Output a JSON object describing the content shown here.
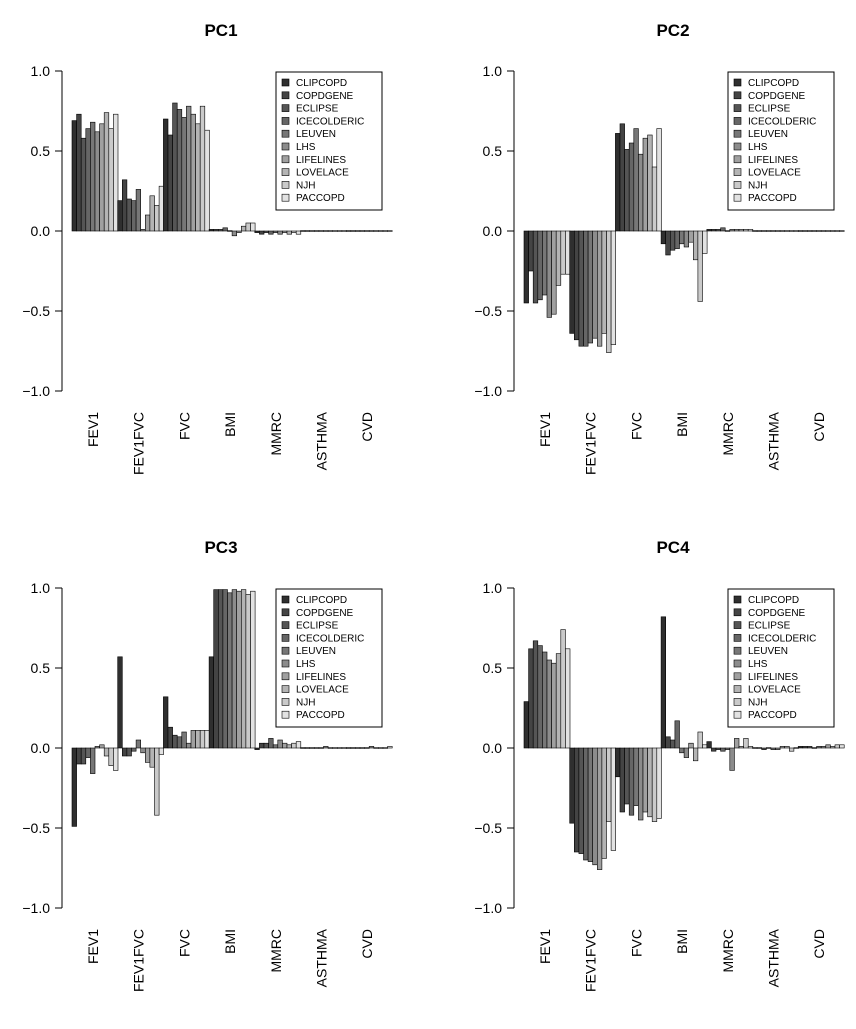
{
  "chart_data": [
    {
      "type": "bar",
      "title": "PC1",
      "categories": [
        "FEV1",
        "FEV1FVC",
        "FVC",
        "BMI",
        "MMRC",
        "ASTHMA",
        "CVD"
      ],
      "legend": [
        "CLIPCOPD",
        "COPDGENE",
        "ECLIPSE",
        "ICECOLDERIC",
        "LEUVEN",
        "LHS",
        "LIFELINES",
        "LOVELACE",
        "NJH",
        "PACCOPD"
      ],
      "colors": [
        "#2f2f2f",
        "#444444",
        "#555555",
        "#666666",
        "#777777",
        "#8c8c8c",
        "#a0a0a0",
        "#b4b4b4",
        "#cacaca",
        "#e2e2e2"
      ],
      "yticks": [
        1.0,
        0.5,
        0.0,
        -0.5,
        -1.0
      ],
      "ytick_labels": [
        "1.0",
        "0.5",
        "0.0",
        "−0.5",
        "−1.0"
      ],
      "ylim": [
        -1.0,
        1.0
      ],
      "legend_position": "top-right",
      "series": [
        {
          "name": "CLIPCOPD",
          "values": [
            0.69,
            0.19,
            0.7,
            0.01,
            -0.01,
            0.0,
            0.0
          ]
        },
        {
          "name": "COPDGENE",
          "values": [
            0.73,
            0.32,
            0.6,
            0.01,
            -0.02,
            0.0,
            0.0
          ]
        },
        {
          "name": "ECLIPSE",
          "values": [
            0.58,
            0.2,
            0.8,
            0.01,
            -0.01,
            0.0,
            0.0
          ]
        },
        {
          "name": "ICECOLDERIC",
          "values": [
            0.64,
            0.19,
            0.76,
            0.02,
            -0.02,
            0.0,
            0.0
          ]
        },
        {
          "name": "LEUVEN",
          "values": [
            0.68,
            0.26,
            0.71,
            0.0,
            -0.01,
            0.0,
            0.0
          ]
        },
        {
          "name": "LHS",
          "values": [
            0.62,
            0.01,
            0.78,
            -0.03,
            -0.02,
            0.0,
            0.0
          ]
        },
        {
          "name": "LIFELINES",
          "values": [
            0.67,
            0.1,
            0.73,
            -0.01,
            -0.01,
            0.0,
            0.0
          ]
        },
        {
          "name": "LOVELACE",
          "values": [
            0.74,
            0.22,
            0.67,
            0.03,
            -0.02,
            0.0,
            0.0
          ]
        },
        {
          "name": "NJH",
          "values": [
            0.64,
            0.16,
            0.78,
            0.05,
            -0.01,
            0.0,
            0.0
          ]
        },
        {
          "name": "PACCOPD",
          "values": [
            0.73,
            0.28,
            0.63,
            0.05,
            -0.02,
            0.0,
            0.0
          ]
        }
      ]
    },
    {
      "type": "bar",
      "title": "PC2",
      "categories": [
        "FEV1",
        "FEV1FVC",
        "FVC",
        "BMI",
        "MMRC",
        "ASTHMA",
        "CVD"
      ],
      "legend": [
        "CLIPCOPD",
        "COPDGENE",
        "ECLIPSE",
        "ICECOLDERIC",
        "LEUVEN",
        "LHS",
        "LIFELINES",
        "LOVELACE",
        "NJH",
        "PACCOPD"
      ],
      "colors": [
        "#2f2f2f",
        "#444444",
        "#555555",
        "#666666",
        "#777777",
        "#8c8c8c",
        "#a0a0a0",
        "#b4b4b4",
        "#cacaca",
        "#e2e2e2"
      ],
      "yticks": [
        1.0,
        0.5,
        0.0,
        -0.5,
        -1.0
      ],
      "ytick_labels": [
        "1.0",
        "0.5",
        "0.0",
        "−0.5",
        "−1.0"
      ],
      "ylim": [
        -1.0,
        1.0
      ],
      "legend_position": "top-right",
      "series": [
        {
          "name": "CLIPCOPD",
          "values": [
            -0.45,
            -0.64,
            0.61,
            -0.08,
            0.01,
            0.0,
            0.0
          ]
        },
        {
          "name": "COPDGENE",
          "values": [
            -0.25,
            -0.68,
            0.67,
            -0.15,
            0.01,
            0.0,
            0.0
          ]
        },
        {
          "name": "ECLIPSE",
          "values": [
            -0.45,
            -0.72,
            0.51,
            -0.12,
            0.01,
            0.0,
            0.0
          ]
        },
        {
          "name": "ICECOLDERIC",
          "values": [
            -0.43,
            -0.72,
            0.55,
            -0.11,
            0.02,
            0.0,
            0.0
          ]
        },
        {
          "name": "LEUVEN",
          "values": [
            -0.4,
            -0.7,
            0.64,
            -0.08,
            0.0,
            0.0,
            0.0
          ]
        },
        {
          "name": "LHS",
          "values": [
            -0.54,
            -0.67,
            0.48,
            -0.1,
            0.01,
            0.0,
            0.0
          ]
        },
        {
          "name": "LIFELINES",
          "values": [
            -0.52,
            -0.72,
            0.58,
            -0.07,
            0.01,
            0.0,
            0.0
          ]
        },
        {
          "name": "LOVELACE",
          "values": [
            -0.34,
            -0.64,
            0.6,
            -0.18,
            0.01,
            0.0,
            0.0
          ]
        },
        {
          "name": "NJH",
          "values": [
            -0.27,
            -0.76,
            0.4,
            -0.44,
            0.01,
            0.0,
            0.0
          ]
        },
        {
          "name": "PACCOPD",
          "values": [
            -0.27,
            -0.71,
            0.64,
            -0.14,
            0.01,
            0.0,
            0.0
          ]
        }
      ]
    },
    {
      "type": "bar",
      "title": "PC3",
      "categories": [
        "FEV1",
        "FEV1FVC",
        "FVC",
        "BMI",
        "MMRC",
        "ASTHMA",
        "CVD"
      ],
      "legend": [
        "CLIPCOPD",
        "COPDGENE",
        "ECLIPSE",
        "ICECOLDERIC",
        "LEUVEN",
        "LHS",
        "LIFELINES",
        "LOVELACE",
        "NJH",
        "PACCOPD"
      ],
      "colors": [
        "#2f2f2f",
        "#444444",
        "#555555",
        "#666666",
        "#777777",
        "#8c8c8c",
        "#a0a0a0",
        "#b4b4b4",
        "#cacaca",
        "#e2e2e2"
      ],
      "yticks": [
        1.0,
        0.5,
        0.0,
        -0.5,
        -1.0
      ],
      "ytick_labels": [
        "1.0",
        "0.5",
        "0.0",
        "−0.5",
        "−1.0"
      ],
      "ylim": [
        -1.0,
        1.0
      ],
      "legend_position": "top-right",
      "series": [
        {
          "name": "CLIPCOPD",
          "values": [
            -0.49,
            0.57,
            0.32,
            0.57,
            -0.01,
            0.0,
            0.0
          ]
        },
        {
          "name": "COPDGENE",
          "values": [
            -0.1,
            -0.05,
            0.13,
            0.99,
            0.03,
            0.0,
            0.0
          ]
        },
        {
          "name": "ECLIPSE",
          "values": [
            -0.1,
            -0.05,
            0.08,
            0.99,
            0.03,
            0.0,
            0.0
          ]
        },
        {
          "name": "ICECOLDERIC",
          "values": [
            -0.06,
            -0.02,
            0.07,
            0.99,
            0.06,
            0.0,
            0.0
          ]
        },
        {
          "name": "LEUVEN",
          "values": [
            -0.16,
            0.05,
            0.1,
            0.97,
            0.02,
            0.0,
            0.0
          ]
        },
        {
          "name": "LHS",
          "values": [
            0.01,
            -0.03,
            0.03,
            0.99,
            0.05,
            0.01,
            0.01
          ]
        },
        {
          "name": "LIFELINES",
          "values": [
            0.02,
            -0.09,
            0.11,
            0.98,
            0.03,
            0.0,
            0.0
          ]
        },
        {
          "name": "LOVELACE",
          "values": [
            -0.05,
            -0.12,
            0.11,
            0.99,
            0.02,
            0.0,
            0.0
          ]
        },
        {
          "name": "NJH",
          "values": [
            -0.11,
            -0.42,
            0.11,
            0.96,
            0.03,
            0.0,
            0.0
          ]
        },
        {
          "name": "PACCOPD",
          "values": [
            -0.14,
            -0.04,
            0.11,
            0.98,
            0.04,
            0.0,
            0.01
          ]
        }
      ]
    },
    {
      "type": "bar",
      "title": "PC4",
      "categories": [
        "FEV1",
        "FEV1FVC",
        "FVC",
        "BMI",
        "MMRC",
        "ASTHMA",
        "CVD"
      ],
      "legend": [
        "CLIPCOPD",
        "COPDGENE",
        "ECLIPSE",
        "ICECOLDERIC",
        "LEUVEN",
        "LHS",
        "LIFELINES",
        "LOVELACE",
        "NJH",
        "PACCOPD"
      ],
      "colors": [
        "#2f2f2f",
        "#444444",
        "#555555",
        "#666666",
        "#777777",
        "#8c8c8c",
        "#a0a0a0",
        "#b4b4b4",
        "#cacaca",
        "#e2e2e2"
      ],
      "yticks": [
        1.0,
        0.5,
        0.0,
        -0.5,
        -1.0
      ],
      "ytick_labels": [
        "1.0",
        "0.5",
        "0.0",
        "−0.5",
        "−1.0"
      ],
      "ylim": [
        -1.0,
        1.0
      ],
      "legend_position": "top-right",
      "series": [
        {
          "name": "CLIPCOPD",
          "values": [
            0.29,
            -0.47,
            -0.18,
            0.82,
            0.04,
            0.0,
            0.01
          ]
        },
        {
          "name": "COPDGENE",
          "values": [
            0.62,
            -0.65,
            -0.4,
            0.07,
            -0.02,
            0.0,
            0.01
          ]
        },
        {
          "name": "ECLIPSE",
          "values": [
            0.67,
            -0.66,
            -0.35,
            0.05,
            -0.01,
            -0.01,
            0.01
          ]
        },
        {
          "name": "ICECOLDERIC",
          "values": [
            0.64,
            -0.7,
            -0.42,
            0.17,
            -0.02,
            0.0,
            0.0
          ]
        },
        {
          "name": "LEUVEN",
          "values": [
            0.6,
            -0.71,
            -0.36,
            -0.03,
            -0.01,
            -0.01,
            0.01
          ]
        },
        {
          "name": "LHS",
          "values": [
            0.55,
            -0.73,
            -0.45,
            -0.06,
            -0.14,
            -0.01,
            0.01
          ]
        },
        {
          "name": "LIFELINES",
          "values": [
            0.53,
            -0.76,
            -0.4,
            0.03,
            0.06,
            0.01,
            0.02
          ]
        },
        {
          "name": "LOVELACE",
          "values": [
            0.59,
            -0.69,
            -0.43,
            -0.08,
            0.01,
            0.01,
            0.01
          ]
        },
        {
          "name": "NJH",
          "values": [
            0.74,
            -0.46,
            -0.46,
            0.1,
            0.06,
            -0.02,
            0.02
          ]
        },
        {
          "name": "PACCOPD",
          "values": [
            0.62,
            -0.64,
            -0.44,
            0.02,
            0.01,
            0.0,
            0.02
          ]
        }
      ]
    }
  ]
}
